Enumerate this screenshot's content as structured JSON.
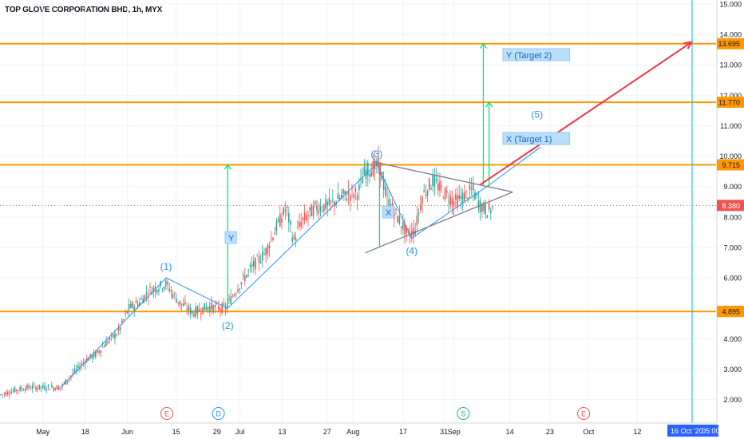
{
  "header": {
    "title": "TOP GLOVE CORPORATION BHD, 1h, MYX"
  },
  "chart_data": {
    "type": "candlestick",
    "title": "TOP GLOVE CORPORATION BHD, 1h, MYX",
    "ylim": [
      1.7,
      15.0
    ],
    "y_ticks": [
      {
        "v": 15.0,
        "label": "15.000"
      },
      {
        "v": 14.0,
        "label": "14.000"
      },
      {
        "v": 13.0,
        "label": "13.000"
      },
      {
        "v": 12.0,
        "label": "12.000"
      },
      {
        "v": 11.0,
        "label": "11.000"
      },
      {
        "v": 10.0,
        "label": "10.000"
      },
      {
        "v": 9.0,
        "label": "9.000"
      },
      {
        "v": 8.0,
        "label": "8.000"
      },
      {
        "v": 7.0,
        "label": "7.000"
      },
      {
        "v": 6.0,
        "label": "6.000"
      },
      {
        "v": 5.0,
        "label": "5.000"
      },
      {
        "v": 4.0,
        "label": "4.000"
      },
      {
        "v": 3.0,
        "label": "3.000"
      },
      {
        "v": 2.0,
        "label": "2.000"
      }
    ],
    "x_ticks": [
      {
        "label": "May",
        "t": 0.06
      },
      {
        "label": "18",
        "t": 0.119
      },
      {
        "label": "Jun",
        "t": 0.178
      },
      {
        "label": "15",
        "t": 0.246
      },
      {
        "label": "29",
        "t": 0.303
      },
      {
        "label": "Jul",
        "t": 0.335
      },
      {
        "label": "13",
        "t": 0.394
      },
      {
        "label": "27",
        "t": 0.457
      },
      {
        "label": "Aug",
        "t": 0.493
      },
      {
        "label": "17",
        "t": 0.563
      },
      {
        "label": "31",
        "t": 0.62
      },
      {
        "label": "Sep",
        "t": 0.634
      },
      {
        "label": "14",
        "t": 0.712
      },
      {
        "label": "23",
        "t": 0.768
      },
      {
        "label": "Oct",
        "t": 0.822
      },
      {
        "label": "12",
        "t": 0.89
      }
    ],
    "x_cursor_label": "16 Oct '20",
    "x_cursor_time": "05:00",
    "horizontal_levels": [
      {
        "value": 13.695,
        "label": "13.695"
      },
      {
        "value": 11.77,
        "label": "11.770"
      },
      {
        "value": 9.715,
        "label": "9.715"
      },
      {
        "value": 4.895,
        "label": "4.895"
      }
    ],
    "current_price": {
      "value": 8.38,
      "label": "8.380"
    },
    "price_path": [
      [
        0.0,
        2.15
      ],
      [
        0.02,
        2.3
      ],
      [
        0.04,
        2.4
      ],
      [
        0.06,
        2.4
      ],
      [
        0.085,
        2.4
      ],
      [
        0.1,
        2.8
      ],
      [
        0.12,
        3.3
      ],
      [
        0.135,
        3.5
      ],
      [
        0.15,
        3.9
      ],
      [
        0.165,
        4.2
      ],
      [
        0.18,
        5.0
      ],
      [
        0.195,
        5.2
      ],
      [
        0.21,
        5.6
      ],
      [
        0.232,
        5.8
      ],
      [
        0.25,
        5.2
      ],
      [
        0.27,
        4.85
      ],
      [
        0.29,
        5.05
      ],
      [
        0.315,
        5.0
      ],
      [
        0.33,
        5.6
      ],
      [
        0.35,
        6.3
      ],
      [
        0.37,
        6.8
      ],
      [
        0.385,
        7.6
      ],
      [
        0.4,
        8.3
      ],
      [
        0.41,
        7.2
      ],
      [
        0.42,
        7.8
      ],
      [
        0.44,
        8.3
      ],
      [
        0.46,
        8.4
      ],
      [
        0.48,
        8.7
      ],
      [
        0.5,
        8.8
      ],
      [
        0.51,
        9.5
      ],
      [
        0.52,
        9.6
      ],
      [
        0.53,
        9.7
      ],
      [
        0.54,
        8.6
      ],
      [
        0.555,
        8.0
      ],
      [
        0.57,
        7.4
      ],
      [
        0.58,
        7.6
      ],
      [
        0.59,
        8.7
      ],
      [
        0.605,
        9.2
      ],
      [
        0.62,
        8.8
      ],
      [
        0.635,
        8.5
      ],
      [
        0.65,
        8.7
      ],
      [
        0.66,
        8.9
      ],
      [
        0.67,
        8.4
      ],
      [
        0.68,
        8.2
      ],
      [
        0.69,
        8.3
      ]
    ],
    "wave_labels": [
      {
        "label": "(1)",
        "t": 0.232,
        "v": 6.0
      },
      {
        "label": "(2)",
        "t": 0.318,
        "v": 4.85
      },
      {
        "label": "(3)",
        "t": 0.526,
        "v": 9.7
      },
      {
        "label": "(4)",
        "t": 0.575,
        "v": 7.25
      },
      {
        "label": "(5)",
        "t": 0.75,
        "v": 11.0
      }
    ],
    "box_labels": [
      {
        "label": "Y"
      },
      {
        "label": "X"
      },
      {
        "label": "X (Target 1)"
      },
      {
        "label": "Y (Target 2)"
      }
    ],
    "event_markers": [
      {
        "label": "E",
        "t": 0.233,
        "color": "#ef5350"
      },
      {
        "label": "D",
        "t": 0.305,
        "color": "#2196f3"
      },
      {
        "label": "S",
        "t": 0.647,
        "color": "#26a69a"
      },
      {
        "label": "E",
        "t": 0.815,
        "color": "#ef5350"
      }
    ],
    "colors": {
      "up": "#26a69a",
      "down": "#ef5350",
      "level": "#ff9800",
      "trend": "#2196f3",
      "arrow": "#00e676",
      "projection": "#f23645",
      "triangle": "#787b86",
      "vertical": "#00bcd4"
    }
  }
}
